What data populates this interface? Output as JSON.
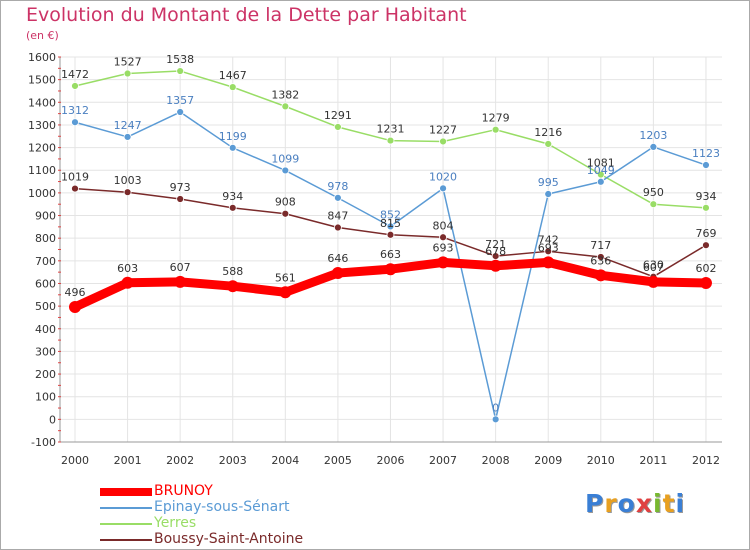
{
  "title": "Evolution du Montant de la Dette par Habitant",
  "unit": "(en €)",
  "logo": {
    "text": "Proxiti",
    "letter_colors": [
      "#3a7fd5",
      "#e8a020",
      "#3a7fd5",
      "#e04040",
      "#78b830",
      "#e8a020",
      "#3a7fd5"
    ]
  },
  "colors": {
    "title": "#cc3366",
    "axis_text": "#333333",
    "grid": "#e4e4e4",
    "axis": "#999999",
    "label": "#444444"
  },
  "chart_data": {
    "type": "line",
    "title": "Evolution du Montant de la Dette par Habitant",
    "subtitle": "(en €)",
    "xlabel": "",
    "ylabel": "",
    "categories": [
      "2000",
      "2001",
      "2002",
      "2003",
      "2004",
      "2005",
      "2006",
      "2007",
      "2008",
      "2009",
      "2010",
      "2011",
      "2012"
    ],
    "ylim": [
      -100,
      1600
    ],
    "yticks": [
      -100,
      0,
      100,
      200,
      300,
      400,
      500,
      600,
      700,
      800,
      900,
      1000,
      1100,
      1200,
      1300,
      1400,
      1500,
      1600
    ],
    "grid": true,
    "legend_position": "bottom-left",
    "series": [
      {
        "name": "BRUNOY",
        "color": "#ff0000",
        "label_color": "#333333",
        "values": [
          496,
          603,
          607,
          588,
          561,
          646,
          663,
          693,
          678,
          693,
          636,
          607,
          602
        ]
      },
      {
        "name": "Epinay-sous-Sénart",
        "color": "#5b9bd5",
        "label_color": "#4a7fc0",
        "values": [
          1312,
          1247,
          1357,
          1199,
          1099,
          978,
          852,
          1020,
          0,
          995,
          1049,
          1203,
          1123
        ]
      },
      {
        "name": "Yerres",
        "color": "#99dd66",
        "label_color": "#333333",
        "values": [
          1472,
          1527,
          1538,
          1467,
          1382,
          1291,
          1231,
          1227,
          1279,
          1216,
          1081,
          950,
          934
        ]
      },
      {
        "name": "Boussy-Saint-Antoine",
        "color": "#7a2a2a",
        "label_color": "#333333",
        "values": [
          1019,
          1003,
          973,
          934,
          908,
          847,
          815,
          804,
          721,
          742,
          717,
          630,
          769
        ]
      }
    ]
  }
}
